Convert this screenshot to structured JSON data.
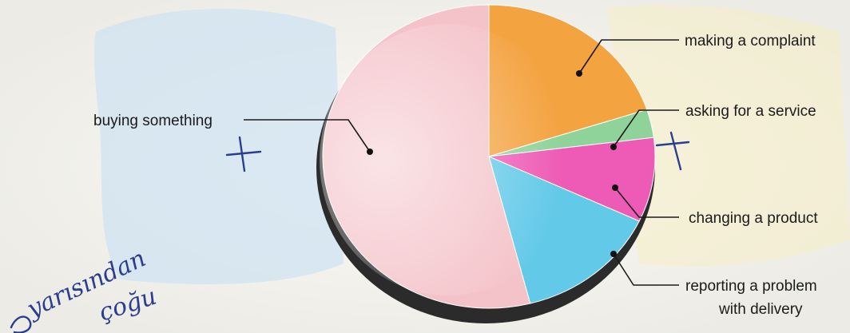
{
  "chart_data": {
    "type": "pie",
    "title": "",
    "slices": [
      {
        "label": "making a complaint",
        "value": 20,
        "color": "#f4a341"
      },
      {
        "label": "asking for a service",
        "value": 3,
        "color": "#8fd39a"
      },
      {
        "label": "changing a product",
        "value": 9,
        "color": "#ee5bb6"
      },
      {
        "label": "reporting a problem with delivery",
        "value": 14,
        "color": "#62c9e8"
      },
      {
        "label": "buying something",
        "value": 54,
        "color": "#f4c3c9"
      }
    ],
    "label_lines": [
      [
        "making a complaint"
      ],
      [
        "asking for a service"
      ],
      [
        "changing a product"
      ],
      [
        "reporting a problem",
        "with delivery"
      ],
      [
        "buying something"
      ]
    ]
  },
  "annotations": {
    "handwriting_plus_left": "+",
    "handwriting_plus_right": "+",
    "handwriting_word1": "yarısından",
    "handwriting_word2": "çoğu"
  }
}
